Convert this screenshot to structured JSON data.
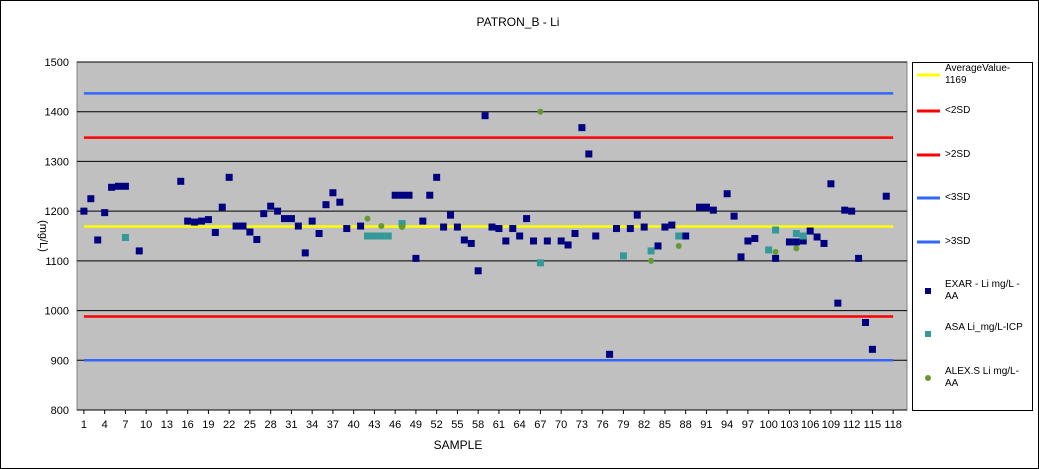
{
  "chart_data": {
    "type": "scatter",
    "title": "PATRON_B - Li",
    "x_label": "SAMPLE",
    "y_label": "(mg/L)",
    "xlim": [
      0,
      120
    ],
    "ylim": [
      800,
      1500
    ],
    "xticks": [
      1,
      4,
      7,
      10,
      13,
      16,
      19,
      22,
      25,
      28,
      31,
      34,
      37,
      40,
      43,
      46,
      49,
      52,
      55,
      58,
      61,
      64,
      67,
      70,
      73,
      76,
      79,
      82,
      85,
      88,
      91,
      94,
      97,
      100,
      103,
      106,
      109,
      112,
      115,
      118
    ],
    "yticks": [
      800,
      900,
      1000,
      1100,
      1200,
      1300,
      1400,
      1500
    ],
    "grid": true,
    "legend": "right",
    "series": [
      {
        "name": "AverageValue-1169",
        "color": "#ffff00",
        "mark": "line",
        "x": [
          1,
          118
        ],
        "values": [
          1169,
          1169
        ]
      },
      {
        "name": "<2SD",
        "color": "#ff0000",
        "mark": "line",
        "x": [
          1,
          118
        ],
        "values": [
          1348,
          1348
        ]
      },
      {
        "name": ">2SD",
        "color": "#ff0000",
        "mark": "line",
        "x": [
          1,
          118
        ],
        "values": [
          988,
          988
        ]
      },
      {
        "name": "<3SD",
        "color": "#3366ff",
        "mark": "line",
        "x": [
          1,
          118
        ],
        "values": [
          900,
          900
        ]
      },
      {
        "name": ">3SD",
        "color": "#3366ff",
        "mark": "line",
        "x": [
          1,
          118
        ],
        "values": [
          1437,
          1437
        ]
      },
      {
        "name": "EXAR - Li mg/L -AA",
        "color": "#000080",
        "mark": "square",
        "x": [
          1,
          2,
          3,
          4,
          5,
          6,
          7,
          9,
          15,
          16,
          17,
          18,
          19,
          20,
          21,
          22,
          23,
          24,
          25,
          26,
          27,
          28,
          29,
          30,
          31,
          32,
          33,
          34,
          35,
          36,
          37,
          38,
          39,
          41,
          46,
          47,
          48,
          49,
          50,
          51,
          52,
          53,
          54,
          55,
          56,
          57,
          58,
          59,
          60,
          61,
          62,
          63,
          64,
          65,
          66,
          68,
          70,
          71,
          72,
          73,
          74,
          75,
          77,
          78,
          80,
          81,
          82,
          84,
          85,
          86,
          88,
          90,
          91,
          92,
          94,
          95,
          96,
          97,
          98,
          101,
          103,
          104,
          105,
          106,
          107,
          108,
          109,
          110,
          111,
          112,
          113,
          114,
          115,
          117
        ],
        "values": [
          1200,
          1225,
          1142,
          1197,
          1248,
          1250,
          1250,
          1120,
          1260,
          1180,
          1178,
          1180,
          1183,
          1157,
          1208,
          1268,
          1170,
          1170,
          1158,
          1143,
          1195,
          1210,
          1200,
          1185,
          1185,
          1170,
          1116,
          1180,
          1155,
          1213,
          1237,
          1218,
          1165,
          1170,
          1232,
          1232,
          1232,
          1105,
          1180,
          1232,
          1268,
          1168,
          1192,
          1168,
          1142,
          1135,
          1080,
          1392,
          1168,
          1165,
          1140,
          1165,
          1150,
          1185,
          1140,
          1140,
          1140,
          1132,
          1155,
          1368,
          1315,
          1150,
          912,
          1165,
          1165,
          1192,
          1168,
          1130,
          1168,
          1172,
          1150,
          1208,
          1208,
          1202,
          1235,
          1190,
          1108,
          1140,
          1145,
          1105,
          1138,
          1138,
          1140,
          1160,
          1148,
          1135,
          1255,
          1015,
          1202,
          1200,
          1105,
          976,
          922,
          1230
        ]
      },
      {
        "name": "ASA  Li_mg/L-ICP",
        "color": "#339999",
        "mark": "square",
        "x": [
          7,
          42,
          43,
          44,
          45,
          47,
          67,
          79,
          83,
          87,
          100,
          101,
          104,
          105
        ],
        "values": [
          1147,
          1150,
          1150,
          1150,
          1150,
          1175,
          1096,
          1110,
          1120,
          1150,
          1122,
          1162,
          1155,
          1150
        ]
      },
      {
        "name": "ALEX.S Li mg/L- AA",
        "color": "#669933",
        "mark": "circle",
        "x": [
          42,
          44,
          47,
          67,
          83,
          87,
          101,
          104
        ],
        "values": [
          1185,
          1170,
          1168,
          1400,
          1100,
          1130,
          1118,
          1125
        ]
      }
    ]
  }
}
